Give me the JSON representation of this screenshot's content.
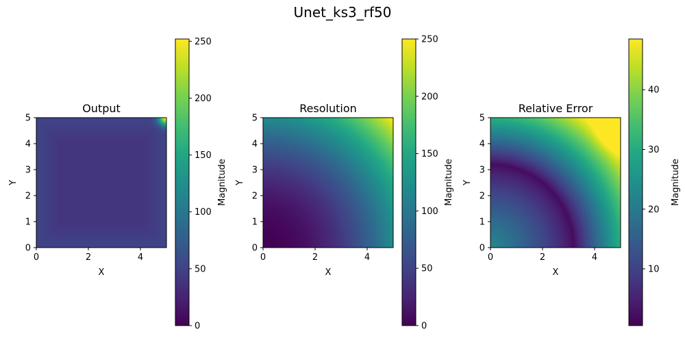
{
  "figure": {
    "title": "Unet_ks3_rf50"
  },
  "chart_data": [
    {
      "type": "heatmap",
      "title": "Output",
      "xlabel": "X",
      "ylabel": "Y",
      "xlim": [
        0,
        5
      ],
      "ylim": [
        0,
        5
      ],
      "xticks": [
        "0",
        "2",
        "4"
      ],
      "yticks": [
        "0",
        "1",
        "2",
        "3",
        "4",
        "5"
      ],
      "colormap": "viridis",
      "colorbar": {
        "label": "Magnitude",
        "min": 0,
        "max": 252,
        "ticks": [
          "0",
          "50",
          "100",
          "150",
          "200",
          "250"
        ],
        "tick_values": [
          0,
          50,
          100,
          150,
          200,
          250
        ]
      },
      "field": {
        "pattern": "flat-with-corner-peak",
        "base": 40,
        "border": 52,
        "corner_peak": 252
      }
    },
    {
      "type": "heatmap",
      "title": "Resolution",
      "xlabel": "X",
      "ylabel": "Y",
      "xlim": [
        0,
        5
      ],
      "ylim": [
        0,
        5
      ],
      "xticks": [
        "0",
        "2",
        "4"
      ],
      "yticks": [
        "0",
        "1",
        "2",
        "3",
        "4",
        "5"
      ],
      "colormap": "viridis",
      "colorbar": {
        "label": "Magnitude",
        "min": 0,
        "max": 250,
        "ticks": [
          "0",
          "50",
          "100",
          "150",
          "200",
          "250"
        ],
        "tick_values": [
          0,
          50,
          100,
          150,
          200,
          250
        ]
      },
      "field": {
        "pattern": "radial-from-lower-left",
        "min": 0,
        "max": 250,
        "peak_corner": "top-right"
      }
    },
    {
      "type": "heatmap",
      "title": "Relative Error",
      "xlabel": "X",
      "ylabel": "Y",
      "xlim": [
        0,
        5
      ],
      "ylim": [
        0,
        5
      ],
      "xticks": [
        "0",
        "2",
        "4"
      ],
      "yticks": [
        "0",
        "1",
        "2",
        "3",
        "4",
        "5"
      ],
      "colormap": "viridis",
      "colorbar": {
        "label": "Magnitude",
        "min": 0.5,
        "max": 48.5,
        "ticks": [
          "10",
          "20",
          "30",
          "40"
        ],
        "tick_values": [
          10,
          20,
          30,
          40
        ]
      },
      "field": {
        "pattern": "low-valley-arc",
        "min": 0.5,
        "max": 48.5,
        "valley_radius": 3.2,
        "peak_corner": "top-right"
      }
    }
  ]
}
